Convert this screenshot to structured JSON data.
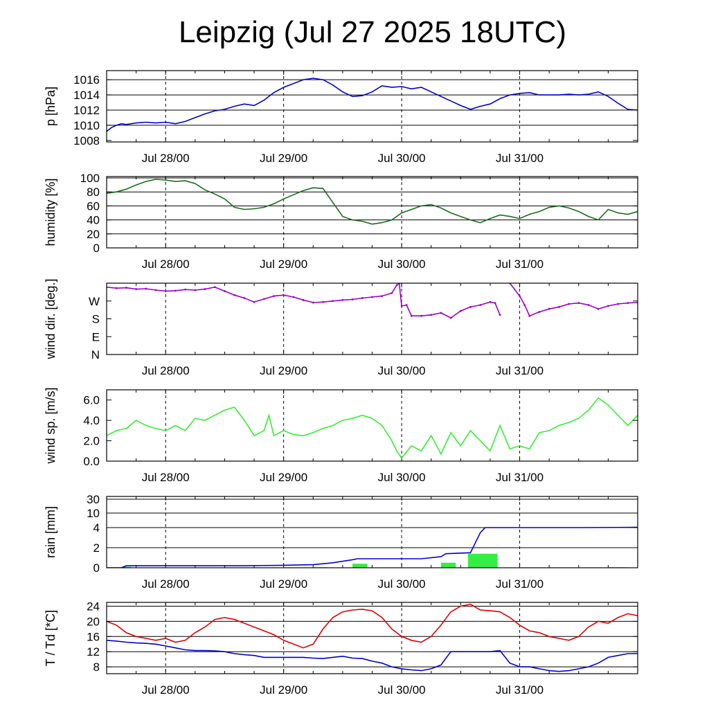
{
  "title": "Leipzig (Jul 27 2025 18UTC)",
  "chart_data": [
    {
      "id": "pressure",
      "type": "line",
      "ylabel": "p [hPa]",
      "ylim": [
        1007.8,
        1017.2
      ],
      "yticks": [
        1008,
        1010,
        1012,
        1014,
        1016
      ],
      "gridlines": [
        1010,
        1012,
        1014,
        1016
      ],
      "xlim": [
        -6,
        102
      ],
      "xticks": [
        {
          "x": 6,
          "label": "Jul 28/00"
        },
        {
          "x": 30,
          "label": "Jul 29/00"
        },
        {
          "x": 54,
          "label": "Jul 30/00"
        },
        {
          "x": 78,
          "label": "Jul 31/00"
        }
      ],
      "series": [
        {
          "color": "#0000cc",
          "x": [
            -6,
            -5,
            -4,
            -3,
            -2,
            0,
            2,
            4,
            6,
            8,
            10,
            12,
            14,
            16,
            18,
            20,
            22,
            24,
            26,
            28,
            30,
            32,
            34,
            36,
            38,
            40,
            42,
            44,
            46,
            48,
            50,
            52,
            54,
            56,
            58,
            60,
            62,
            64,
            66,
            68,
            70,
            72,
            74,
            76,
            78,
            80,
            82,
            84,
            86,
            88,
            90,
            92,
            94,
            96,
            98,
            100,
            102
          ],
          "y": [
            1009.2,
            1009.7,
            1010.0,
            1010.2,
            1010.1,
            1010.3,
            1010.4,
            1010.3,
            1010.4,
            1010.2,
            1010.5,
            1011.0,
            1011.5,
            1011.9,
            1012.1,
            1012.5,
            1012.8,
            1012.6,
            1013.3,
            1014.3,
            1015.0,
            1015.5,
            1016.0,
            1016.2,
            1016.0,
            1015.3,
            1014.4,
            1013.8,
            1013.9,
            1014.4,
            1015.2,
            1015.0,
            1015.1,
            1014.8,
            1015.0,
            1014.4,
            1013.8,
            1013.2,
            1012.6,
            1012.1,
            1012.5,
            1012.8,
            1013.5,
            1014.0,
            1014.2,
            1014.3,
            1014.0,
            1014.0,
            1014.0,
            1014.1,
            1014.0,
            1014.1,
            1014.4,
            1013.8,
            1012.9,
            1012.1,
            1012.0
          ]
        }
      ]
    },
    {
      "id": "humidity",
      "type": "line",
      "ylabel": "humidity [%]",
      "ylim": [
        0,
        102
      ],
      "yticks": [
        0,
        20,
        40,
        60,
        80,
        100
      ],
      "gridlines": [
        20,
        40,
        60,
        80,
        100
      ],
      "xlim": [
        -6,
        102
      ],
      "xticks": [
        {
          "x": 6,
          "label": "Jul 28/00"
        },
        {
          "x": 30,
          "label": "Jul 29/00"
        },
        {
          "x": 54,
          "label": "Jul 30/00"
        },
        {
          "x": 78,
          "label": "Jul 31/00"
        }
      ],
      "series": [
        {
          "color": "#1a6b1a",
          "x": [
            -6,
            -4,
            -2,
            0,
            2,
            4,
            6,
            8,
            10,
            12,
            14,
            16,
            18,
            20,
            22,
            24,
            26,
            28,
            30,
            32,
            34,
            36,
            38,
            40,
            42,
            44,
            46,
            48,
            50,
            52,
            54,
            56,
            58,
            60,
            62,
            64,
            66,
            68,
            70,
            72,
            74,
            76,
            78,
            80,
            82,
            84,
            86,
            88,
            90,
            92,
            94,
            96,
            98,
            100,
            102
          ],
          "y": [
            78,
            80,
            84,
            90,
            95,
            98,
            97,
            95,
            96,
            92,
            83,
            77,
            70,
            58,
            55,
            56,
            58,
            63,
            70,
            76,
            82,
            86,
            85,
            65,
            45,
            40,
            38,
            34,
            36,
            40,
            50,
            55,
            60,
            62,
            57,
            50,
            45,
            40,
            36,
            42,
            47,
            45,
            42,
            48,
            52,
            58,
            60,
            57,
            52,
            45,
            40,
            55,
            50,
            48,
            52
          ]
        }
      ]
    },
    {
      "id": "wind-direction",
      "type": "scatter",
      "ylabel": "wind dir. [deg.]",
      "ylim": [
        0,
        360
      ],
      "yticks": [
        {
          "y": 0,
          "label": "N"
        },
        {
          "y": 90,
          "label": "E"
        },
        {
          "y": 180,
          "label": "S"
        },
        {
          "y": 270,
          "label": "W"
        }
      ],
      "xlim": [
        -6,
        102
      ],
      "xticks": [
        {
          "x": 6,
          "label": "Jul 28/00"
        },
        {
          "x": 30,
          "label": "Jul 29/00"
        },
        {
          "x": 54,
          "label": "Jul 30/00"
        },
        {
          "x": 78,
          "label": "Jul 31/00"
        }
      ],
      "series": [
        {
          "color": "#9900cc",
          "x": [
            -6,
            -4,
            -2,
            0,
            2,
            4,
            6,
            8,
            10,
            12,
            14,
            16,
            18,
            20,
            22,
            24,
            26,
            28,
            30,
            32,
            34,
            36,
            38,
            40,
            42,
            44,
            46,
            48,
            50,
            52,
            53,
            53.5,
            54,
            55,
            56,
            58,
            60,
            62,
            64,
            66,
            68,
            70,
            72,
            73,
            74,
            76,
            78,
            79,
            80,
            82,
            84,
            86,
            88,
            90,
            92,
            94,
            96,
            98,
            100,
            102
          ],
          "y": [
            340,
            335,
            337,
            330,
            332,
            325,
            320,
            322,
            328,
            325,
            330,
            340,
            320,
            300,
            285,
            265,
            280,
            295,
            300,
            290,
            275,
            262,
            265,
            270,
            275,
            278,
            285,
            290,
            295,
            310,
            350,
            360,
            245,
            250,
            195,
            195,
            200,
            210,
            185,
            220,
            240,
            250,
            265,
            260,
            200,
            360,
            295,
            250,
            195,
            215,
            230,
            240,
            255,
            260,
            250,
            230,
            245,
            255,
            260,
            262
          ]
        }
      ]
    },
    {
      "id": "wind-speed",
      "type": "line",
      "ylabel": "wind sp. [m/s]",
      "ylim": [
        0,
        7.0
      ],
      "yticks": [
        {
          "y": 0,
          "label": "0.0"
        },
        {
          "y": 2,
          "label": "2.0"
        },
        {
          "y": 4,
          "label": "4.0"
        },
        {
          "y": 6,
          "label": "6.0"
        }
      ],
      "xlim": [
        -6,
        102
      ],
      "xticks": [
        {
          "x": 6,
          "label": "Jul 28/00"
        },
        {
          "x": 30,
          "label": "Jul 29/00"
        },
        {
          "x": 54,
          "label": "Jul 30/00"
        },
        {
          "x": 78,
          "label": "Jul 31/00"
        }
      ],
      "series": [
        {
          "color": "#33ee33",
          "x": [
            -6,
            -4,
            -2,
            0,
            2,
            4,
            6,
            8,
            10,
            12,
            14,
            16,
            18,
            20,
            22,
            24,
            26,
            27,
            28,
            30,
            32,
            34,
            36,
            38,
            40,
            42,
            44,
            46,
            48,
            50,
            52,
            53,
            54,
            56,
            58,
            60,
            62,
            64,
            66,
            68,
            70,
            72,
            74,
            76,
            78,
            80,
            82,
            84,
            86,
            88,
            90,
            92,
            94,
            96,
            98,
            100,
            102
          ],
          "y": [
            2.5,
            3.0,
            3.2,
            4.0,
            3.5,
            3.2,
            3.0,
            3.5,
            3.0,
            4.2,
            4.0,
            4.5,
            5.0,
            5.3,
            4.0,
            2.5,
            3.0,
            4.5,
            2.5,
            3.0,
            2.6,
            2.5,
            2.8,
            3.2,
            3.5,
            4.0,
            4.2,
            4.5,
            4.2,
            3.5,
            2.0,
            1.0,
            0.3,
            1.5,
            1.0,
            2.5,
            0.7,
            2.8,
            1.5,
            3.0,
            2.0,
            1.0,
            3.5,
            1.2,
            1.5,
            1.2,
            2.8,
            3.0,
            3.5,
            3.8,
            4.2,
            5.0,
            6.2,
            5.5,
            4.5,
            3.5,
            4.5
          ]
        }
      ]
    },
    {
      "id": "rain",
      "type": "bar",
      "ylabel": "rain [mm]",
      "scale": "piecewise",
      "ylim": [
        0,
        30
      ],
      "yticks": [
        0,
        2,
        4,
        10,
        30
      ],
      "ytick_labels": [
        "0",
        "2",
        "4",
        "10",
        "30"
      ],
      "gridlines": [
        2,
        4,
        10,
        30
      ],
      "xlim": [
        -6,
        102
      ],
      "xticks": [
        {
          "x": 6,
          "label": "Jul 28/00"
        },
        {
          "x": 30,
          "label": "Jul 29/00"
        },
        {
          "x": 54,
          "label": "Jul 30/00"
        },
        {
          "x": 78,
          "label": "Jul 31/00"
        }
      ],
      "bars": {
        "color": "#33ee44",
        "x0": [
          -3,
          36,
          44,
          62,
          67.5,
          96
        ],
        "x1": [
          -1,
          39,
          47,
          65,
          73.5,
          100
        ],
        "values": [
          0.1,
          0.05,
          0.4,
          0.5,
          1.4,
          0.05
        ]
      },
      "series": [
        {
          "color": "#0000cc",
          "x": [
            -6,
            -3,
            -2,
            6,
            14,
            22,
            30,
            36,
            40,
            44,
            45,
            54,
            58,
            62,
            63,
            68,
            69,
            70,
            71,
            72,
            78,
            90,
            102
          ],
          "y": [
            0,
            0,
            0.2,
            0.2,
            0.2,
            0.2,
            0.25,
            0.3,
            0.5,
            0.8,
            0.9,
            0.9,
            0.9,
            1.1,
            1.4,
            1.5,
            2.5,
            3.5,
            4.0,
            4.0,
            4.0,
            4.0,
            4.1
          ]
        }
      ]
    },
    {
      "id": "temperature",
      "type": "line",
      "ylabel": "T / Td [*C]",
      "ylim": [
        6.2,
        25.0
      ],
      "yticks": [
        8,
        12,
        16,
        20,
        24
      ],
      "gridlines": [
        8,
        12,
        16,
        20,
        24
      ],
      "xlim": [
        -6,
        102
      ],
      "xticks": [
        {
          "x": 6,
          "label": "Jul 28/00"
        },
        {
          "x": 30,
          "label": "Jul 29/00"
        },
        {
          "x": 54,
          "label": "Jul 30/00"
        },
        {
          "x": 78,
          "label": "Jul 31/00"
        }
      ],
      "series": [
        {
          "color": "#dd0000",
          "x": [
            -6,
            -4,
            -2,
            0,
            2,
            4,
            6,
            8,
            10,
            12,
            14,
            16,
            18,
            20,
            22,
            24,
            26,
            28,
            30,
            32,
            34,
            36,
            38,
            40,
            42,
            44,
            46,
            48,
            50,
            52,
            54,
            56,
            58,
            60,
            62,
            64,
            66,
            68,
            70,
            72,
            74,
            76,
            78,
            80,
            82,
            84,
            86,
            88,
            90,
            92,
            94,
            96,
            98,
            100,
            102
          ],
          "y": [
            20,
            19,
            17,
            16,
            15.5,
            15,
            15.5,
            14.5,
            15,
            17,
            18.5,
            20.5,
            21,
            20.5,
            19.5,
            18.5,
            17.5,
            16.5,
            15,
            14,
            13,
            14,
            18,
            21,
            22.5,
            23,
            23.2,
            22.8,
            21,
            18,
            16,
            15,
            14.5,
            16,
            19,
            22.5,
            24,
            24.5,
            23,
            22.8,
            22.5,
            21,
            19,
            17.5,
            17,
            16,
            15.5,
            15,
            16,
            18.5,
            20,
            19.5,
            21,
            22,
            21.5
          ]
        },
        {
          "color": "#0000cc",
          "x": [
            -6,
            -4,
            -2,
            0,
            2,
            4,
            6,
            8,
            10,
            12,
            14,
            16,
            18,
            20,
            22,
            24,
            26,
            28,
            30,
            32,
            34,
            36,
            38,
            40,
            42,
            44,
            46,
            48,
            50,
            52,
            54,
            56,
            58,
            60,
            62,
            64,
            66,
            68,
            70,
            72,
            74,
            76,
            78,
            80,
            82,
            84,
            86,
            88,
            90,
            92,
            94,
            96,
            98,
            100,
            102
          ],
          "y": [
            15,
            14.8,
            14.5,
            14.3,
            14.2,
            14,
            13.5,
            13,
            12.5,
            12.3,
            12.3,
            12.2,
            12,
            11.5,
            11.2,
            11,
            10.5,
            10.5,
            10.5,
            10.5,
            10.5,
            10.3,
            10.2,
            10.5,
            10.8,
            10.3,
            10.2,
            9.5,
            9,
            8,
            7.5,
            7.2,
            7,
            7.5,
            8.5,
            12,
            12,
            12,
            12,
            12,
            12.3,
            9,
            8,
            8,
            7.5,
            7,
            6.8,
            7,
            7.5,
            8,
            9,
            10.5,
            11,
            11.5,
            11.5
          ]
        }
      ]
    }
  ]
}
